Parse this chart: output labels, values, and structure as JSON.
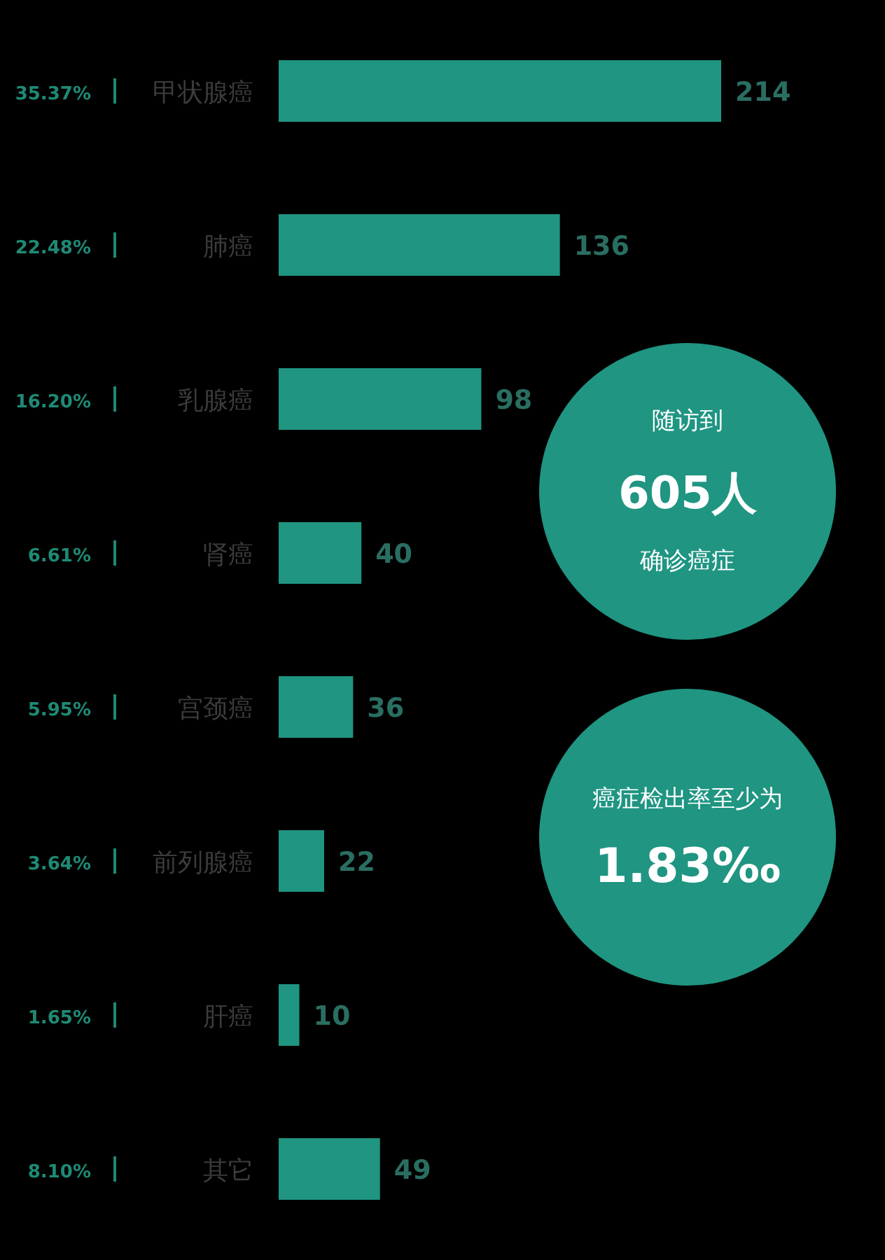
{
  "chart_data": {
    "type": "bar",
    "orientation": "horizontal",
    "categories": [
      "甲状腺癌",
      "肺癌",
      "乳腺癌",
      "肾癌",
      "宫颈癌",
      "前列腺癌",
      "肝癌",
      "其它"
    ],
    "values": [
      214,
      136,
      98,
      40,
      36,
      22,
      10,
      49
    ],
    "color": "#1f9582",
    "data_labels": true,
    "annotations": [
      "35.37%",
      "22.48%",
      "16.20%",
      "6.61%",
      "5.95%",
      "3.64%",
      "1.65%",
      "8.10%",
      "随访到",
      "605人",
      "确诊癌症",
      "癌症检出率至少为",
      "1.83‰"
    ]
  }
}
